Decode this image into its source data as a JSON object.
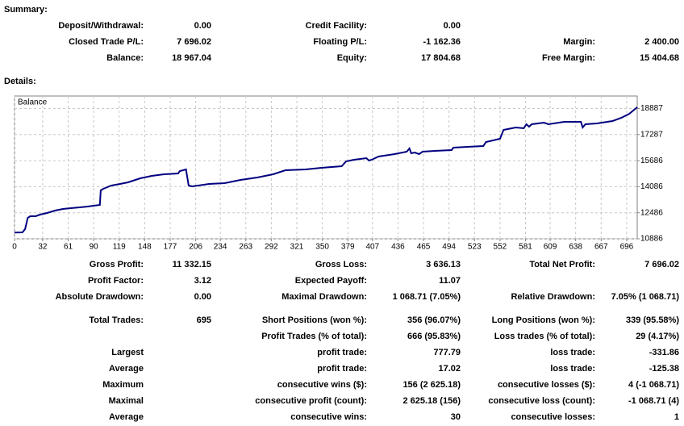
{
  "summary": {
    "heading": "Summary:",
    "rows": [
      [
        "Deposit/Withdrawal:",
        "0.00",
        "Credit Facility:",
        "0.00",
        null,
        null
      ],
      [
        "Closed Trade P/L:",
        "7 696.02",
        "Floating P/L:",
        "-1 162.36",
        "Margin:",
        "2 400.00"
      ],
      [
        "Balance:",
        "18 967.04",
        "Equity:",
        "17 804.68",
        "Free Margin:",
        "15 404.68"
      ]
    ]
  },
  "details": {
    "heading": "Details:",
    "rows": [
      [
        "Gross Profit:",
        "11 332.15",
        "Gross Loss:",
        "3 636.13",
        "Total Net Profit:",
        "7 696.02"
      ],
      [
        "Profit Factor:",
        "3.12",
        "Expected Payoff:",
        "11.07",
        null,
        null
      ],
      [
        "Absolute Drawdown:",
        "0.00",
        "Maximal Drawdown:",
        "1 068.71 (7.05%)",
        "Relative Drawdown:",
        "7.05% (1 068.71)"
      ],
      [
        "Total Trades:",
        "695",
        "Short Positions (won %):",
        "356 (96.07%)",
        "Long Positions (won %):",
        "339 (95.58%)"
      ],
      [
        null,
        null,
        "Profit Trades (% of total):",
        "666 (95.83%)",
        "Loss trades (% of total):",
        "29 (4.17%)"
      ],
      [
        "Largest",
        null,
        "profit trade:",
        "777.79",
        "loss trade:",
        "-331.86"
      ],
      [
        "Average",
        null,
        "profit trade:",
        "17.02",
        "loss trade:",
        "-125.38"
      ],
      [
        "Maximum",
        null,
        "consecutive wins ($):",
        "156 (2 625.18)",
        "consecutive losses ($):",
        "4 (-1 068.71)"
      ],
      [
        "Maximal",
        null,
        "consecutive profit (count):",
        "2 625.18 (156)",
        "consecutive loss (count):",
        "-1 068.71 (4)"
      ],
      [
        "Average",
        null,
        "consecutive wins:",
        "30",
        "consecutive losses:",
        "1"
      ]
    ]
  },
  "chart_data": {
    "type": "line",
    "x": [
      0,
      9,
      12,
      15,
      18,
      24,
      29,
      37,
      46,
      55,
      64,
      74,
      83,
      97,
      98,
      101,
      110,
      120,
      129,
      143,
      156,
      170,
      186,
      188,
      195,
      198,
      202,
      221,
      239,
      257,
      276,
      294,
      308,
      331,
      349,
      372,
      377,
      386,
      400,
      403,
      406,
      414,
      432,
      446,
      449,
      451,
      455,
      460,
      464,
      478,
      497,
      499,
      515,
      533,
      536,
      552,
      556,
      570,
      579,
      582,
      585,
      588,
      602,
      607,
      625,
      644,
      646,
      649,
      662,
      680,
      690,
      699,
      708
    ],
    "series": [
      {
        "name": "Balance",
        "color": "#000080",
        "values": [
          11271,
          11282,
          11480,
          12174,
          12273,
          12273,
          12372,
          12471,
          12620,
          12719,
          12769,
          12818,
          12868,
          12967,
          13858,
          13957,
          14156,
          14255,
          14354,
          14602,
          14750,
          14849,
          14899,
          15048,
          15146,
          14156,
          14106,
          14255,
          14304,
          14502,
          14651,
          14849,
          15097,
          15146,
          15246,
          15345,
          15642,
          15741,
          15840,
          15691,
          15741,
          15939,
          16088,
          16236,
          16434,
          16137,
          16187,
          16088,
          16236,
          16286,
          16335,
          16484,
          16534,
          16583,
          16831,
          17029,
          17574,
          17723,
          17673,
          17921,
          17772,
          17921,
          18020,
          17921,
          18069,
          18069,
          17723,
          17921,
          17970,
          18119,
          18317,
          18565,
          18967
        ]
      }
    ],
    "xlim": [
      0,
      708
    ],
    "ylim": [
      10886,
      19655
    ],
    "xticks": [
      0,
      32,
      61,
      90,
      119,
      148,
      177,
      206,
      234,
      263,
      292,
      321,
      350,
      379,
      407,
      436,
      465,
      494,
      523,
      552,
      581,
      609,
      638,
      667,
      696
    ],
    "yticks": [
      10886,
      12486,
      14086,
      15686,
      17287,
      18887
    ],
    "grid": true
  }
}
